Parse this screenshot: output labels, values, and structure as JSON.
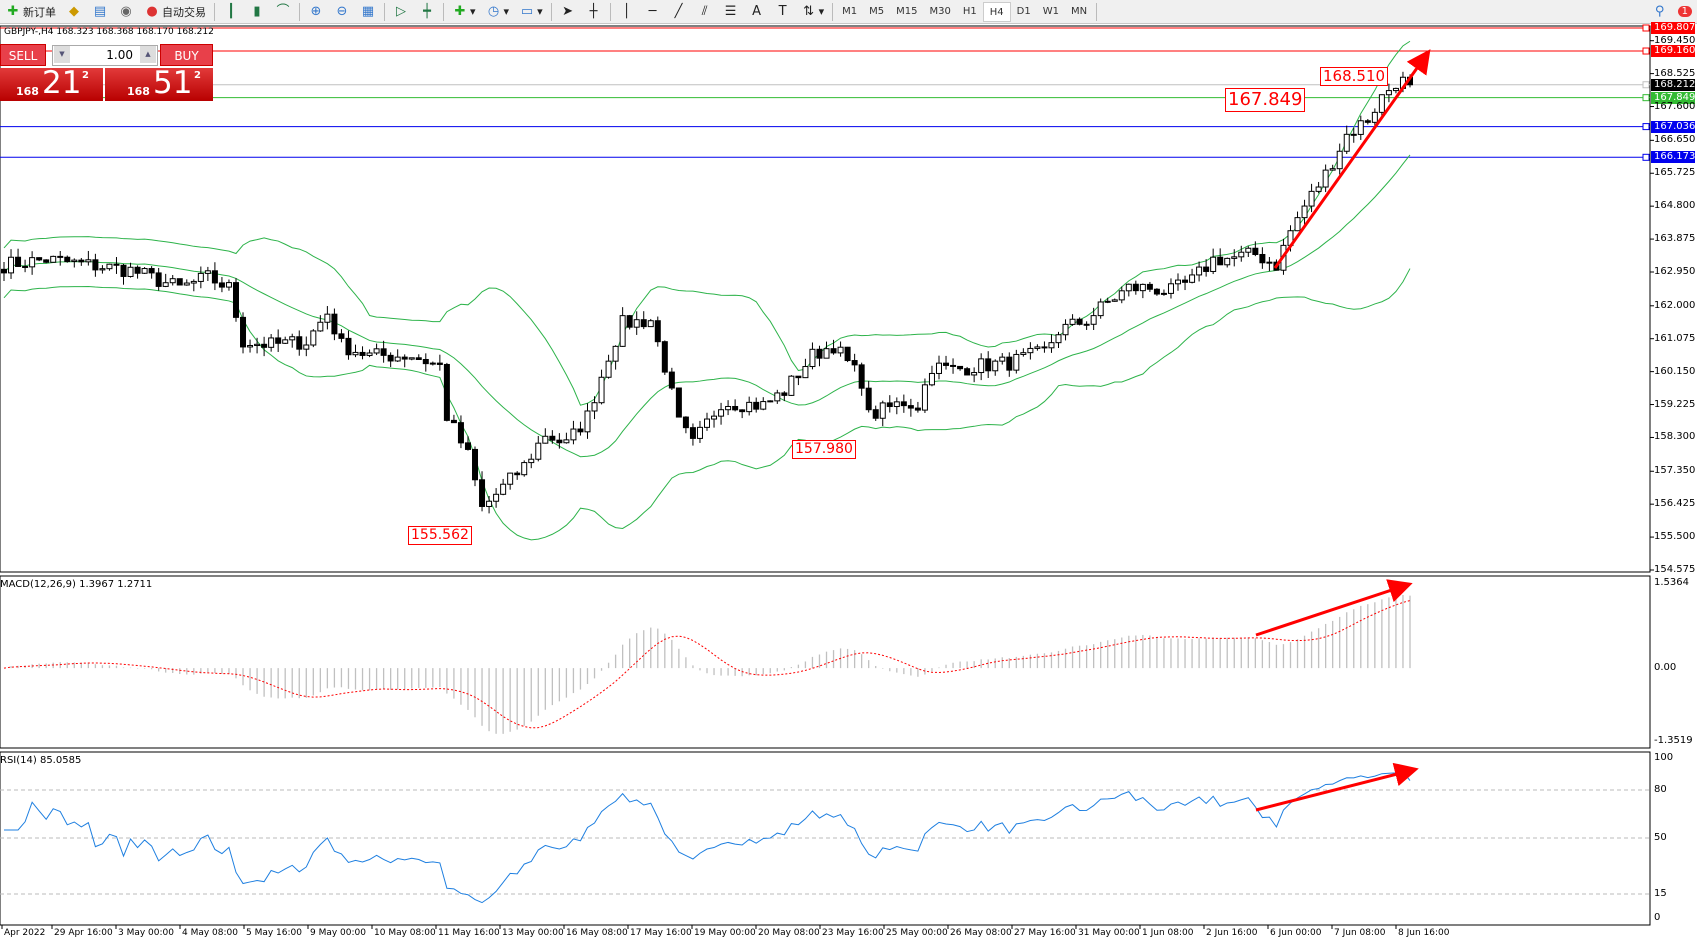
{
  "toolbar": {
    "new_order": "新订单",
    "auto_trade": "自动交易",
    "icons": [
      "new-order-icon",
      "market-watch-icon",
      "navigator-icon",
      "signal-icon",
      "auto-trade-icon",
      "bar-chart-icon",
      "candlestick-icon",
      "line-chart-icon",
      "zoom-in-icon",
      "zoom-out-icon",
      "tile-windows-icon",
      "scroll-icon",
      "shift-icon",
      "indicators-icon",
      "periods-icon",
      "templates-icon",
      "cursor-icon",
      "crosshair-icon",
      "vertical-line-icon",
      "horizontal-line-icon",
      "trendline-icon",
      "channel-icon",
      "fibonacci-icon",
      "text-icon",
      "label-icon",
      "arrows-icon"
    ],
    "timeframes": [
      "M1",
      "M5",
      "M15",
      "M30",
      "H1",
      "H4",
      "D1",
      "W1",
      "MN"
    ],
    "active_timeframe": "H4",
    "notifications": "1"
  },
  "header": "GBPJPY-,H4  168.323 168.368 168.170 168.212",
  "trade": {
    "sell": "SELL",
    "buy": "BUY",
    "lot": "1.00",
    "sell_price": {
      "prefix": "168",
      "big": "21",
      "pip": "2"
    },
    "buy_price": {
      "prefix": "168",
      "big": "51",
      "pip": "2"
    }
  },
  "price_axis": [
    "169.450",
    "168.525",
    "167.600",
    "166.650",
    "165.725",
    "164.800",
    "163.875",
    "162.950",
    "162.000",
    "161.075",
    "160.150",
    "159.225",
    "158.300",
    "157.350",
    "156.425",
    "155.500",
    "154.575"
  ],
  "levels": [
    {
      "price": 169.807,
      "label": "169.807",
      "color": "#ff0000"
    },
    {
      "price": 169.16,
      "label": "169.160",
      "color": "#ff0000"
    },
    {
      "price": 168.212,
      "label": "168.212",
      "color": "#000000",
      "line": "#c0c0c0"
    },
    {
      "price": 167.849,
      "label": "167.849",
      "color": "#33bb33"
    },
    {
      "price": 167.036,
      "label": "167.036",
      "color": "#0000ee"
    },
    {
      "price": 166.173,
      "label": "166.173",
      "color": "#0000ee"
    }
  ],
  "annotations": [
    "155.562",
    "157.980",
    "167.849",
    "168.510"
  ],
  "macd": {
    "title": "MACD(12,26,9) 1.3967 1.2711",
    "axis": [
      "1.5364",
      "0.00",
      "-1.3519"
    ],
    "max": 1.5364,
    "min": -1.3519
  },
  "rsi": {
    "title": "RSI(14) 85.0585",
    "axis": [
      "100",
      "80",
      "50",
      "15",
      "0"
    ],
    "levels": [
      80,
      50,
      15
    ]
  },
  "time_axis": [
    "Apr 2022",
    "29 Apr 16:00",
    "3 May 00:00",
    "4 May 08:00",
    "5 May 16:00",
    "9 May 00:00",
    "10 May 08:00",
    "11 May 16:00",
    "13 May 00:00",
    "16 May 08:00",
    "17 May 16:00",
    "19 May 00:00",
    "20 May 08:00",
    "23 May 16:00",
    "25 May 00:00",
    "26 May 08:00",
    "27 May 16:00",
    "31 May 00:00",
    "1 Jun 08:00",
    "2 Jun 16:00",
    "6 Jun 00:00",
    "7 Jun 08:00",
    "8 Jun 16:00"
  ],
  "chart_data": {
    "type": "candlestick",
    "symbol": "GBPJPY-",
    "timeframe": "H4",
    "ylim": [
      154.575,
      169.807
    ],
    "close_path": [
      [
        0,
        163.15
      ],
      [
        6,
        163.3
      ],
      [
        12,
        163.15
      ],
      [
        18,
        163.0
      ],
      [
        25,
        162.5
      ],
      [
        29,
        162.8
      ],
      [
        32,
        162.5
      ],
      [
        34,
        161.0
      ],
      [
        38,
        160.9
      ],
      [
        43,
        161.0
      ],
      [
        46,
        161.8
      ],
      [
        48,
        160.9
      ],
      [
        52,
        160.6
      ],
      [
        58,
        160.6
      ],
      [
        62,
        160.3
      ],
      [
        63,
        158.9
      ],
      [
        66,
        157.8
      ],
      [
        68,
        156.3
      ],
      [
        71,
        156.9
      ],
      [
        74,
        157.5
      ],
      [
        77,
        158.4
      ],
      [
        80,
        158.1
      ],
      [
        83,
        158.9
      ],
      [
        86,
        160.6
      ],
      [
        88,
        161.5
      ],
      [
        92,
        161.6
      ],
      [
        94,
        160.3
      ],
      [
        96,
        158.7
      ],
      [
        98,
        158.1
      ],
      [
        102,
        159.3
      ],
      [
        108,
        159.2
      ],
      [
        111,
        159.6
      ],
      [
        115,
        160.6
      ],
      [
        118,
        160.9
      ],
      [
        122,
        159.9
      ],
      [
        123,
        158.9
      ],
      [
        128,
        159.3
      ],
      [
        130,
        159.2
      ],
      [
        132,
        160.3
      ],
      [
        135,
        160.2
      ],
      [
        138,
        160.3
      ],
      [
        143,
        160.4
      ],
      [
        148,
        160.7
      ],
      [
        150,
        161.3
      ],
      [
        154,
        161.6
      ],
      [
        157,
        162.1
      ],
      [
        160,
        162.5
      ],
      [
        163,
        162.5
      ],
      [
        166,
        162.4
      ],
      [
        169,
        162.7
      ],
      [
        172,
        163.3
      ],
      [
        175,
        163.35
      ],
      [
        178,
        163.45
      ],
      [
        181,
        163.15
      ],
      [
        183,
        164.1
      ],
      [
        185,
        164.8
      ],
      [
        188,
        165.7
      ],
      [
        191,
        166.8
      ],
      [
        194,
        167.25
      ],
      [
        196,
        167.86
      ],
      [
        198,
        168.3
      ],
      [
        199,
        168.3
      ],
      [
        200,
        168.212
      ]
    ],
    "indicators": [
      "Bollinger Bands(20,2)",
      "MACD(12,26,9)",
      "RSI(14)"
    ]
  },
  "colors": {
    "bands": "#2db34a",
    "signal": "#ff0000",
    "histogram": "#c0c0c0",
    "rsi": "#1e7fe0",
    "arrow": "#ff0000"
  }
}
